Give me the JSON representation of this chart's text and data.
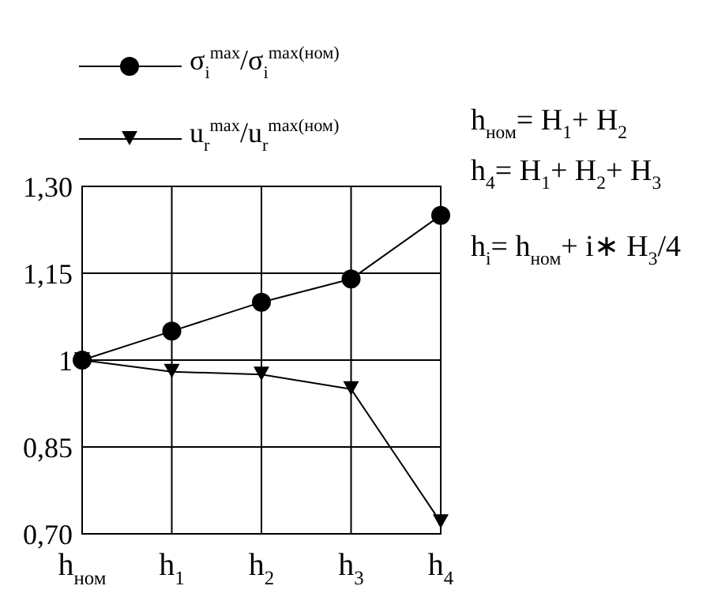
{
  "chart_data": {
    "type": "line",
    "categories": [
      "h$_{ном}$",
      "h$_{1}$",
      "h$_{2}$",
      "h$_{3}$",
      "h$_{4}$"
    ],
    "series": [
      {
        "name": "σ$_{i}$$^{max}$/σ$_{i}$$^{max(ном)}$",
        "color": "#000000",
        "marker": "circle",
        "values": [
          1,
          1.05,
          1.1,
          1.14,
          1.25
        ]
      },
      {
        "name": "u$_{r}$$^{max}$/u$_{r}$$^{max(ном)}$",
        "color": "#000000",
        "marker": "triangle",
        "values": [
          1,
          0.98,
          0.975,
          0.95,
          0.72
        ]
      }
    ],
    "ylim": [
      0.7,
      1.3
    ],
    "yticks": [
      {
        "value": 0.7,
        "label": "0,70"
      },
      {
        "value": 0.85,
        "label": "0,85"
      },
      1,
      {
        "value": 1.15,
        "label": "1,15"
      },
      {
        "value": 1.3,
        "label": "1,30"
      }
    ],
    "grid": true,
    "legend": "top left",
    "line_style": "solid",
    "annotations": [
      "h$_{ном}$= H$_{1}$+ H$_{2}$",
      "h$_{4}$= H$_{1}$+ H$_{2}$+ H$_{3}$",
      "h$_{i}$= h$_{ном}$+ i∗ H$_{3}$/4"
    ]
  }
}
